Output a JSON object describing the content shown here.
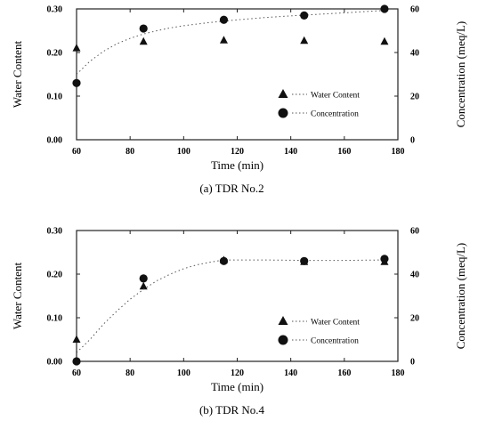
{
  "chart_data": [
    {
      "type": "scatter",
      "caption": "(a) TDR No.2",
      "xlabel": "Time (min)",
      "ylabel": "Water Content",
      "y2label": "Concentration (meq/L)",
      "xlim": [
        60,
        180
      ],
      "ylim": [
        0.0,
        0.3
      ],
      "y2lim": [
        0,
        60
      ],
      "x_ticks": [
        "60",
        "80",
        "100",
        "120",
        "140",
        "160",
        "180"
      ],
      "y_ticks": [
        "0.00",
        "0.10",
        "0.20",
        "0.30"
      ],
      "y2_ticks": [
        "0",
        "20",
        "40",
        "60"
      ],
      "legend_position": "right-middle",
      "series": [
        {
          "name": "Water Content",
          "axis": "left",
          "marker": "triangle",
          "x": [
            60,
            85,
            115,
            145,
            175
          ],
          "y": [
            0.21,
            0.225,
            0.228,
            0.227,
            0.225
          ]
        },
        {
          "name": "Concentration",
          "axis": "right",
          "marker": "circle",
          "x": [
            60,
            85,
            115,
            145,
            175
          ],
          "y": [
            26,
            51,
            55,
            57,
            60
          ],
          "fit_curve": {
            "x": [
              60,
              65,
              70,
              75,
              80,
              85,
              90,
              95,
              100,
              110,
              120,
              130,
              140,
              150,
              160,
              175
            ],
            "y": [
              30,
              36,
              40.5,
              44,
              46.5,
              48.5,
              50,
              51.3,
              52.3,
              53.8,
              55,
              56,
              56.8,
              57.5,
              58.2,
              59.3
            ]
          }
        }
      ]
    },
    {
      "type": "scatter",
      "caption": "(b) TDR No.4",
      "xlabel": "Time (min)",
      "ylabel": "Water Content",
      "y2label": "Concentration (meq/L)",
      "xlim": [
        60,
        180
      ],
      "ylim": [
        0.0,
        0.3
      ],
      "y2lim": [
        0,
        60
      ],
      "x_ticks": [
        "60",
        "80",
        "100",
        "120",
        "140",
        "160",
        "180"
      ],
      "y_ticks": [
        "0.00",
        "0.10",
        "0.20",
        "0.30"
      ],
      "y2_ticks": [
        "0",
        "20",
        "40",
        "60"
      ],
      "legend_position": "right-lower",
      "series": [
        {
          "name": "Water Content",
          "axis": "left",
          "marker": "triangle",
          "x": [
            60,
            85,
            115,
            145,
            175
          ],
          "y": [
            0.05,
            0.172,
            0.232,
            0.228,
            0.228
          ]
        },
        {
          "name": "Concentration",
          "axis": "right",
          "marker": "circle",
          "x": [
            60,
            85,
            115,
            145,
            175
          ],
          "y": [
            0,
            38,
            46,
            46,
            47
          ],
          "fit_curve": {
            "x": [
              60,
              65,
              70,
              75,
              80,
              85,
              90,
              95,
              100,
              105,
              110,
              115,
              130,
              145,
              160,
              175
            ],
            "y": [
              4,
              10,
              17,
              23,
              28.5,
              33,
              37,
              40,
              42.5,
              44.3,
              45.5,
              46.5,
              46.5,
              46.3,
              46.3,
              46.5
            ]
          }
        }
      ]
    }
  ]
}
